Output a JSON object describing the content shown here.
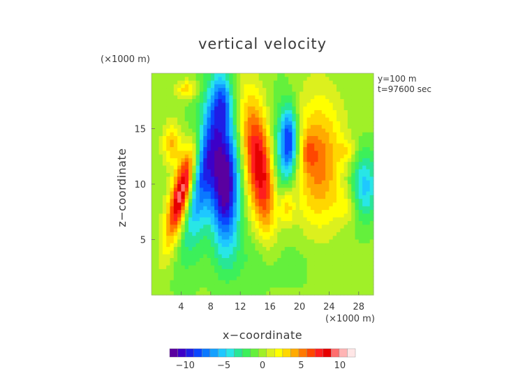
{
  "chart_data": {
    "type": "heatmap",
    "title": "vertical velocity",
    "xlabel": "x−coordinate",
    "ylabel": "z−coordinate",
    "x_unit": "(×1000 m)",
    "y_unit": "(×1000 m)",
    "annotations": [
      "y=100 m",
      "t=97600 sec"
    ],
    "xlim": [
      0,
      30
    ],
    "ylim": [
      0,
      20
    ],
    "x_ticks": [
      4,
      8,
      12,
      16,
      20,
      24,
      28
    ],
    "x_tick_labels": [
      "4",
      "8",
      "12",
      "16",
      "20",
      "24",
      "28"
    ],
    "y_ticks": [
      5,
      10,
      15
    ],
    "y_tick_labels": [
      "5",
      "10",
      "15"
    ],
    "colorbar": {
      "range": [
        -12,
        12
      ],
      "ticks": [
        -10,
        -5,
        0,
        5,
        10
      ],
      "tick_labels": [
        "−10",
        "−5",
        "0",
        "5",
        "10"
      ]
    },
    "background_value": -0.2,
    "features": [
      {
        "x": 4.3,
        "z": 9.6,
        "sx": 1.0,
        "sz": 3.2,
        "tilt": 0.35,
        "value": 12.5
      },
      {
        "x": 2.8,
        "z": 13.6,
        "sx": 0.9,
        "sz": 1.3,
        "tilt": 0.0,
        "value": 4.0
      },
      {
        "x": 4.8,
        "z": 18.5,
        "sx": 1.0,
        "sz": 0.6,
        "tilt": 0.0,
        "value": 3.5
      },
      {
        "x": 7.0,
        "z": 12.0,
        "sx": 1.6,
        "sz": 4.8,
        "tilt": 0.25,
        "value": -9.0
      },
      {
        "x": 10.0,
        "z": 9.8,
        "sx": 1.3,
        "sz": 3.8,
        "tilt": 0.0,
        "value": -11.5
      },
      {
        "x": 9.5,
        "z": 17.5,
        "sx": 0.9,
        "sz": 1.6,
        "tilt": 0.0,
        "value": -4.0
      },
      {
        "x": 14.6,
        "z": 11.5,
        "sx": 1.4,
        "sz": 4.3,
        "tilt": -0.2,
        "value": 9.0
      },
      {
        "x": 17.2,
        "z": 11.5,
        "sx": 0.9,
        "sz": 4.0,
        "tilt": 0.0,
        "value": -3.0
      },
      {
        "x": 18.6,
        "z": 13.8,
        "sx": 0.8,
        "sz": 2.2,
        "tilt": 0.0,
        "value": -9.0
      },
      {
        "x": 18.2,
        "z": 8.0,
        "sx": 0.7,
        "sz": 1.1,
        "tilt": 0.0,
        "value": 3.5
      },
      {
        "x": 22.6,
        "z": 12.0,
        "sx": 2.2,
        "sz": 4.0,
        "tilt": 0.0,
        "value": 5.5
      },
      {
        "x": 21.3,
        "z": 12.9,
        "sx": 0.6,
        "sz": 1.0,
        "tilt": 0.0,
        "value": 2.5
      },
      {
        "x": 28.8,
        "z": 9.8,
        "sx": 1.3,
        "sz": 2.2,
        "tilt": 0.0,
        "value": -5.0
      },
      {
        "x": 26.5,
        "z": 13.0,
        "sx": 0.8,
        "sz": 0.8,
        "tilt": 0.0,
        "value": 2.0
      },
      {
        "x": 26.3,
        "z": 8.0,
        "sx": 1.0,
        "sz": 1.0,
        "tilt": 0.0,
        "value": 2.0
      },
      {
        "x": 15.0,
        "z": 3.0,
        "sx": 5.0,
        "sz": 2.0,
        "tilt": 0.0,
        "value": -1.3
      }
    ]
  }
}
